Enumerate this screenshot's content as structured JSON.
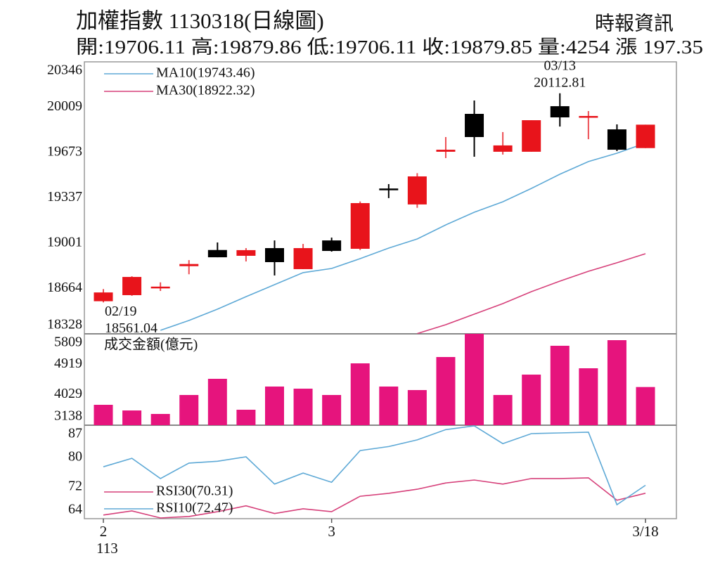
{
  "header": {
    "title": "加權指數 1130318(日線圖)",
    "source": "時報資訊",
    "summary": "開:19706.11 高:19879.86 低:19706.11 收:19879.85 量:4254 漲 197.35"
  },
  "chart_data": [
    {
      "type": "candlestick",
      "up_color": "#e8141b",
      "down_color": "#000000",
      "open": [
        18570,
        18615,
        18665,
        18830,
        18950,
        18907,
        18964,
        18808,
        19021,
        18959,
        19400,
        19288,
        19679,
        19960,
        19679,
        19679,
        20017,
        19928,
        19845,
        19706.11
      ],
      "high": [
        18660,
        18755,
        18710,
        18875,
        19006,
        18964,
        19021,
        18995,
        19042,
        19310,
        19439,
        19520,
        19788,
        20059,
        19825,
        19913,
        20112.81,
        19981,
        19882,
        19879.86
      ],
      "low": [
        18561.04,
        18610,
        18646,
        18770,
        18896,
        18865,
        18761,
        18808,
        18938,
        18950,
        19335,
        19263,
        19632,
        19642,
        19658,
        19679,
        19866,
        19772,
        19684,
        19706.11
      ],
      "close": [
        18635,
        18750,
        18672,
        18846,
        18896,
        18949,
        18860,
        18964,
        18943,
        19298,
        19396,
        19496,
        19694,
        19788,
        19726,
        19913,
        19934,
        19938,
        19694,
        19879.85
      ],
      "series": [
        {
          "name": "MA10(19743.46)",
          "color": "#5ea9d6",
          "values": [
            null,
            null,
            18354,
            18427,
            18511,
            18604,
            18693,
            18782,
            18813,
            18886,
            18964,
            19032,
            19136,
            19230,
            19308,
            19407,
            19512,
            19606,
            19668,
            19743.46
          ]
        },
        {
          "name": "MA30(18922.32)",
          "color": "#d6407a",
          "values": [
            null,
            null,
            null,
            null,
            null,
            null,
            null,
            null,
            null,
            null,
            null,
            18330,
            18396,
            18474,
            18552,
            18641,
            18719,
            18792,
            18855,
            18922.32
          ]
        }
      ],
      "annotations": [
        {
          "date": "02/19",
          "value": 18561.04
        },
        {
          "date": "03/13",
          "value": 20112.81
        }
      ],
      "ylim": [
        18328,
        20346
      ],
      "yticks": [
        18328,
        18664,
        19001,
        19337,
        19673,
        20009,
        20346
      ],
      "grid": false
    },
    {
      "type": "bar",
      "title": "成交金額(億元)",
      "color": "#e6147d",
      "values": [
        3734,
        3569,
        3467,
        4021,
        4494,
        3590,
        4268,
        4206,
        4021,
        4946,
        4268,
        4165,
        5131,
        5809,
        4021,
        4617,
        5460,
        4802,
        5624,
        4254
      ],
      "ylim": [
        3138,
        5809
      ],
      "yticks": [
        3138,
        4029,
        4919,
        5809
      ],
      "grid": false
    },
    {
      "type": "line",
      "categories": [
        "2",
        null,
        null,
        null,
        null,
        null,
        null,
        null,
        "3",
        null,
        null,
        null,
        null,
        null,
        null,
        null,
        null,
        null,
        null,
        "3/18"
      ],
      "year_label": "113",
      "series": [
        {
          "name": "RSI30(70.31)",
          "color": "#d6407a",
          "values": [
            64.4,
            65.5,
            63.6,
            64.0,
            65.3,
            66.9,
            64.8,
            66.1,
            65.3,
            69.5,
            70.3,
            71.4,
            73.1,
            73.9,
            72.8,
            74.3,
            74.3,
            74.5,
            68.4,
            70.31
          ]
        },
        {
          "name": "RSI10(72.47)",
          "color": "#5ea9d6",
          "values": [
            77.5,
            79.8,
            74.3,
            78.5,
            79.0,
            80.2,
            72.8,
            75.8,
            73.3,
            81.9,
            83.0,
            84.8,
            87.6,
            88.6,
            83.8,
            86.5,
            86.7,
            86.9,
            67.2,
            72.47
          ]
        }
      ],
      "ylim": [
        63.4,
        88.8
      ],
      "yticks": [
        64,
        72,
        80,
        87
      ],
      "grid": false
    }
  ]
}
